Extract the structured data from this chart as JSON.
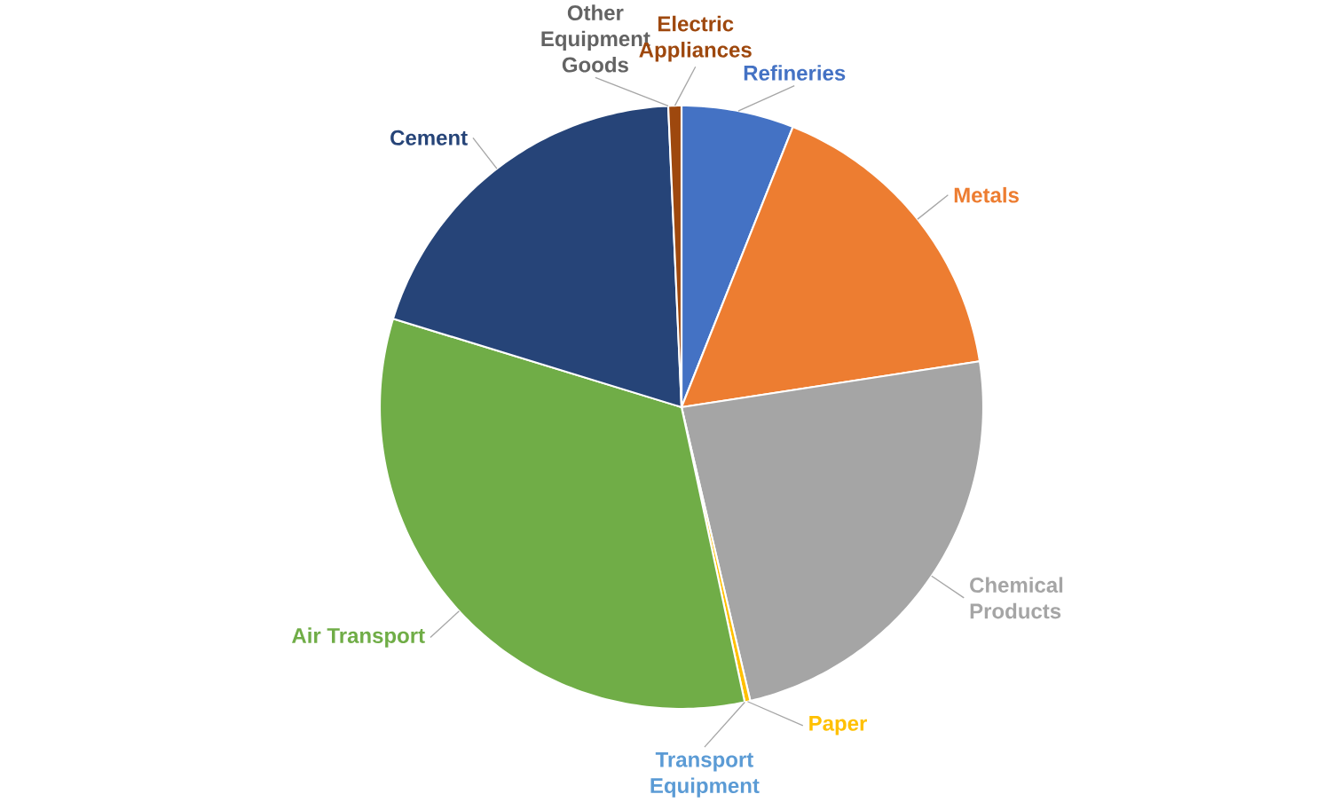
{
  "chart_data": {
    "type": "pie",
    "categories": [
      "Refineries",
      "Metals",
      "Chemical Products",
      "Paper",
      "Transport Equipment",
      "Air Transport",
      "Cement",
      "Other Equipment Goods",
      "Electric Appliances"
    ],
    "values": [
      6,
      16.5,
      23.7,
      0.3,
      null,
      33,
      19.5,
      null,
      0.7
    ],
    "colors": [
      "#4472c4",
      "#ed7d31",
      "#a5a5a5",
      "#ffc000",
      "#5b9bd5",
      "#70ad47",
      "#264478",
      "#636363",
      "#9e480e"
    ]
  }
}
